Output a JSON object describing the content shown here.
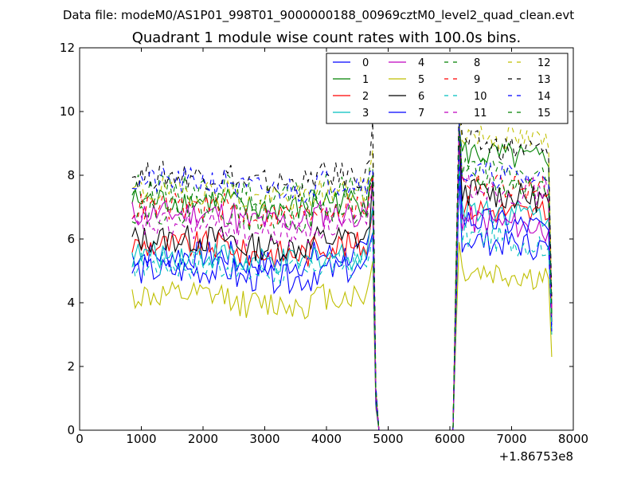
{
  "figure": {
    "suptitle": "Data file: modeM0/AS1P01_998T01_9000000188_00969cztM0_level2_quad_clean.evt",
    "offset_label": "+1.86753e8"
  },
  "chart_data": {
    "type": "line",
    "title": "Quadrant 1 module wise count rates with 100.0s bins.",
    "xlabel": "",
    "ylabel": "",
    "xlim": [
      0,
      8000
    ],
    "ylim": [
      0,
      12
    ],
    "x_offset": 186753000,
    "xticks": [
      0,
      1000,
      2000,
      3000,
      4000,
      5000,
      6000,
      7000,
      8000
    ],
    "yticks": [
      0,
      2,
      4,
      6,
      8,
      10,
      12
    ],
    "xtick_labels": [
      "0",
      "1000",
      "2000",
      "3000",
      "4000",
      "5000",
      "6000",
      "7000",
      "8000"
    ],
    "ytick_labels": [
      "0",
      "2",
      "4",
      "6",
      "8",
      "10",
      "12"
    ],
    "grid": false,
    "legend_position": "top-right",
    "legend_columns": 4,
    "bin_width_s": 100,
    "segments": [
      {
        "start": 850,
        "end": 4750,
        "step": 50
      },
      {
        "start": 4800,
        "end": 6050,
        "step": 50
      },
      {
        "start": 6100,
        "end": 7650,
        "step": 50
      }
    ],
    "series": [
      {
        "name": "0",
        "color": "#0000ff",
        "style": "solid",
        "level1": 5.5,
        "level2": 6.0,
        "peak1": 7.0,
        "peak2": 8.0,
        "end": 3.3
      },
      {
        "name": "1",
        "color": "#008000",
        "style": "solid",
        "level1": 7.2,
        "level2": 8.7,
        "peak1": 8.0,
        "peak2": 9.5,
        "end": 3.6
      },
      {
        "name": "2",
        "color": "#ff0000",
        "style": "solid",
        "level1": 5.8,
        "level2": 7.0,
        "peak1": 7.0,
        "peak2": 9.0,
        "end": 3.7
      },
      {
        "name": "3",
        "color": "#00bfbf",
        "style": "solid",
        "level1": 5.5,
        "level2": 7.0,
        "peak1": 7.0,
        "peak2": 8.8,
        "end": 3.0
      },
      {
        "name": "4",
        "color": "#bf00bf",
        "style": "solid",
        "level1": 6.8,
        "level2": 6.6,
        "peak1": 7.8,
        "peak2": 9.4,
        "end": 3.9
      },
      {
        "name": "5",
        "color": "#bfbf00",
        "style": "solid",
        "level1": 4.2,
        "level2": 5.0,
        "peak1": 5.3,
        "peak2": 5.9,
        "end": 2.3
      },
      {
        "name": "6",
        "color": "#000000",
        "style": "solid",
        "level1": 6.0,
        "level2": 7.5,
        "peak1": 8.0,
        "peak2": 9.6,
        "end": 3.4
      },
      {
        "name": "7",
        "color": "#0000ff",
        "style": "solid",
        "level1": 5.0,
        "level2": 6.6,
        "peak1": 6.2,
        "peak2": 8.5,
        "end": 3.1
      },
      {
        "name": "8",
        "color": "#008000",
        "style": "dashed",
        "level1": 7.6,
        "level2": 8.2,
        "peak1": 8.2,
        "peak2": 9.7,
        "end": 3.5
      },
      {
        "name": "9",
        "color": "#ff0000",
        "style": "dashed",
        "level1": 7.0,
        "level2": 7.8,
        "peak1": 8.0,
        "peak2": 9.5,
        "end": 3.8
      },
      {
        "name": "10",
        "color": "#00bfbf",
        "style": "dashed",
        "level1": 5.2,
        "level2": 6.1,
        "peak1": 6.2,
        "peak2": 8.5,
        "end": 3.2
      },
      {
        "name": "11",
        "color": "#bf00bf",
        "style": "dashed",
        "level1": 6.4,
        "level2": 7.7,
        "peak1": 7.6,
        "peak2": 9.5,
        "end": 3.6
      },
      {
        "name": "12",
        "color": "#bfbf00",
        "style": "dashed",
        "level1": 7.5,
        "level2": 9.3,
        "peak1": 8.8,
        "peak2": 10.0,
        "end": 4.0
      },
      {
        "name": "13",
        "color": "#000000",
        "style": "dashed",
        "level1": 8.0,
        "level2": 9.0,
        "peak1": 9.7,
        "peak2": 10.3,
        "end": 4.2
      },
      {
        "name": "14",
        "color": "#0000ff",
        "style": "dashed",
        "level1": 7.8,
        "level2": 8.1,
        "peak1": 8.2,
        "peak2": 9.8,
        "end": 3.9
      },
      {
        "name": "15",
        "color": "#008000",
        "style": "dashed",
        "level1": 6.9,
        "level2": 7.8,
        "peak1": 8.0,
        "peak2": 9.4,
        "end": 3.7
      }
    ]
  }
}
